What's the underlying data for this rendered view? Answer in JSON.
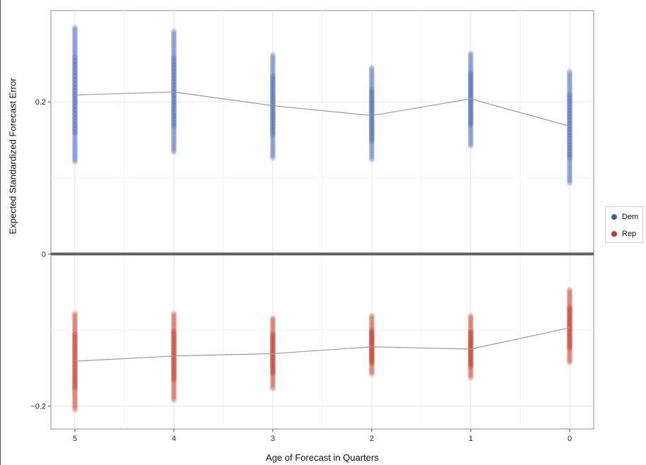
{
  "chart_data": {
    "type": "scatter",
    "xlabel": "Age of Forecast in Quarters",
    "ylabel": "Expected Standardized Forecast Error",
    "categories": [
      "5",
      "4",
      "3",
      "2",
      "1",
      "0"
    ],
    "ylim": [
      -0.23,
      0.32
    ],
    "yticks": [
      {
        "value": 0.2,
        "label": "0.2"
      },
      {
        "value": 0,
        "label": "0"
      },
      {
        "value": -0.2,
        "label": "−0.2"
      }
    ],
    "grid": true,
    "zero_line": true,
    "legend": {
      "placement": "right"
    },
    "series": [
      {
        "name": "Dem",
        "color": "#3a5fb5",
        "ranges": [
          [
            0.121,
            0.298
          ],
          [
            0.134,
            0.293
          ],
          [
            0.126,
            0.262
          ],
          [
            0.124,
            0.245
          ],
          [
            0.142,
            0.264
          ],
          [
            0.093,
            0.24
          ]
        ],
        "line": [
          0.209,
          0.213,
          0.195,
          0.182,
          0.204,
          0.168
        ]
      },
      {
        "name": "Rep",
        "color": "#c8341e",
        "ranges": [
          [
            -0.205,
            -0.078
          ],
          [
            -0.192,
            -0.078
          ],
          [
            -0.177,
            -0.084
          ],
          [
            -0.158,
            -0.081
          ],
          [
            -0.163,
            -0.081
          ],
          [
            -0.143,
            -0.047
          ]
        ],
        "line": [
          -0.141,
          -0.134,
          -0.131,
          -0.122,
          -0.125,
          -0.097
        ]
      }
    ]
  }
}
